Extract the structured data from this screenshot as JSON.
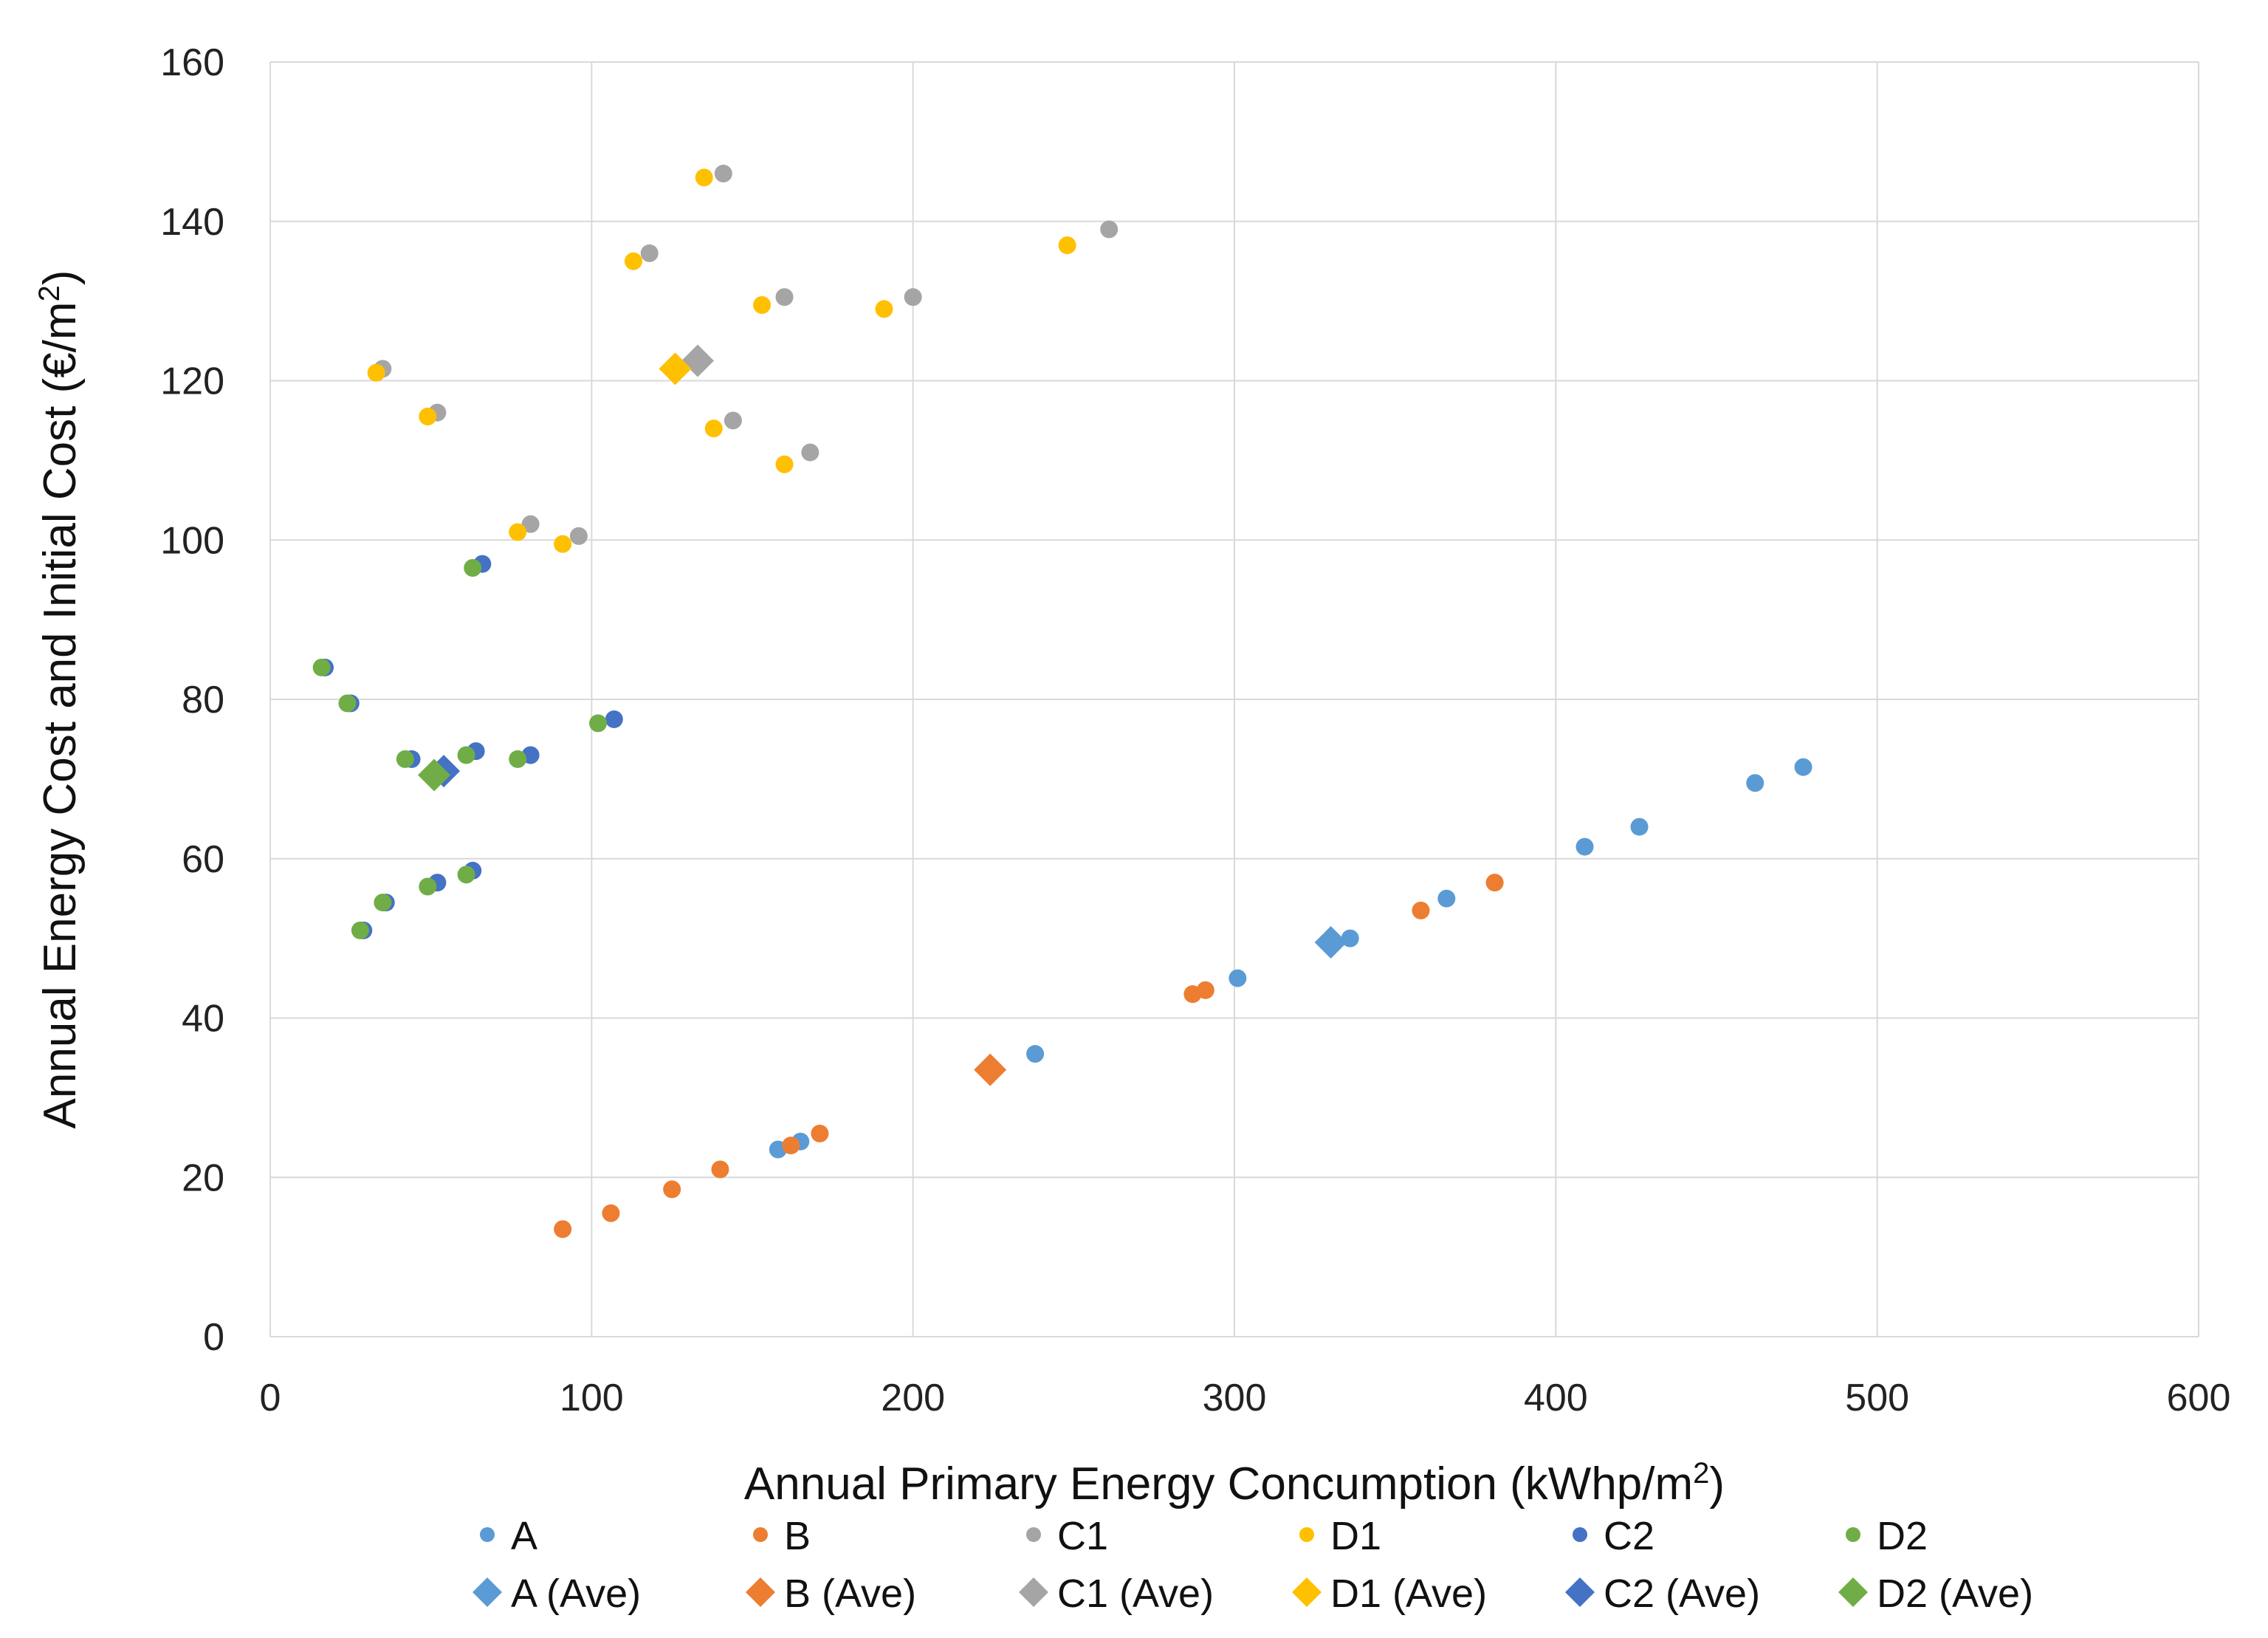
{
  "chart_data": {
    "type": "scatter",
    "title": "",
    "xlabel": "Annual Primary Energy Concumption (kWhp/m",
    "xlabel_sup": "2",
    "xlabel_end": ")",
    "ylabel": "Annual Energy Cost and Initial Cost (€/m",
    "ylabel_sup": "2",
    "ylabel_end": ")",
    "xlim": [
      0,
      600
    ],
    "ylim": [
      0,
      160
    ],
    "x_ticks": [
      0,
      100,
      200,
      300,
      400,
      500,
      600
    ],
    "y_ticks": [
      0,
      20,
      40,
      60,
      80,
      100,
      120,
      140,
      160
    ],
    "x_tick_labels": [
      "0",
      "100",
      "200",
      "300",
      "400",
      "500",
      "600"
    ],
    "y_tick_labels": [
      "0",
      "20",
      "40",
      "60",
      "80",
      "100",
      "120",
      "140",
      "160"
    ],
    "grid": true,
    "legend_position": "bottom",
    "series": [
      {
        "name": "A",
        "marker": "circle",
        "color": "#5B9BD5",
        "points": [
          [
            158,
            23.5
          ],
          [
            165,
            24.5
          ],
          [
            238,
            35.5
          ],
          [
            301,
            45
          ],
          [
            336,
            50
          ],
          [
            366,
            55
          ],
          [
            409,
            61.5
          ],
          [
            426,
            64
          ],
          [
            462,
            69.5
          ],
          [
            477,
            71.5
          ]
        ]
      },
      {
        "name": "B",
        "marker": "circle",
        "color": "#ED7D31",
        "points": [
          [
            91,
            13.5
          ],
          [
            106,
            15.5
          ],
          [
            125,
            18.5
          ],
          [
            140,
            21
          ],
          [
            162,
            24
          ],
          [
            171,
            25.5
          ],
          [
            287,
            43
          ],
          [
            291,
            43.5
          ],
          [
            358,
            53.5
          ],
          [
            381,
            57
          ]
        ]
      },
      {
        "name": "C1",
        "marker": "circle",
        "color": "#A5A5A5",
        "points": [
          [
            35,
            121.5
          ],
          [
            52,
            116
          ],
          [
            81,
            102
          ],
          [
            96,
            100.5
          ],
          [
            118,
            136
          ],
          [
            141,
            146
          ],
          [
            144,
            115
          ],
          [
            160,
            130.5
          ],
          [
            168,
            111
          ],
          [
            200,
            130.5
          ],
          [
            261,
            139
          ]
        ]
      },
      {
        "name": "D1",
        "marker": "circle",
        "color": "#FFC000",
        "points": [
          [
            33,
            121
          ],
          [
            49,
            115.5
          ],
          [
            77,
            101
          ],
          [
            91,
            99.5
          ],
          [
            113,
            135
          ],
          [
            135,
            145.5
          ],
          [
            138,
            114
          ],
          [
            153,
            129.5
          ],
          [
            160,
            109.5
          ],
          [
            191,
            129
          ],
          [
            248,
            137
          ]
        ]
      },
      {
        "name": "C2",
        "marker": "circle",
        "color": "#4472C4",
        "points": [
          [
            17,
            84
          ],
          [
            25,
            79.5
          ],
          [
            44,
            72.5
          ],
          [
            64,
            73.5
          ],
          [
            81,
            73
          ],
          [
            107,
            77.5
          ],
          [
            29,
            51
          ],
          [
            36,
            54.5
          ],
          [
            52,
            57
          ],
          [
            63,
            58.5
          ],
          [
            66,
            97
          ]
        ]
      },
      {
        "name": "D2",
        "marker": "circle",
        "color": "#70AD47",
        "points": [
          [
            16,
            84
          ],
          [
            24,
            79.5
          ],
          [
            42,
            72.5
          ],
          [
            61,
            73
          ],
          [
            77,
            72.5
          ],
          [
            102,
            77
          ],
          [
            28,
            51
          ],
          [
            35,
            54.5
          ],
          [
            49,
            56.5
          ],
          [
            61,
            58
          ],
          [
            63,
            96.5
          ]
        ]
      },
      {
        "name": "A (Ave)",
        "marker": "diamond",
        "color": "#5B9BD5",
        "points": [
          [
            330,
            49.5
          ]
        ]
      },
      {
        "name": "B (Ave)",
        "marker": "diamond",
        "color": "#ED7D31",
        "points": [
          [
            224,
            33.5
          ]
        ]
      },
      {
        "name": "C1 (Ave)",
        "marker": "diamond",
        "color": "#A5A5A5",
        "points": [
          [
            133,
            122.5
          ]
        ]
      },
      {
        "name": "D1 (Ave)",
        "marker": "diamond",
        "color": "#FFC000",
        "points": [
          [
            126,
            121.5
          ]
        ]
      },
      {
        "name": "C2 (Ave)",
        "marker": "diamond",
        "color": "#4472C4",
        "points": [
          [
            54,
            71
          ]
        ]
      },
      {
        "name": "D2 (Ave)",
        "marker": "diamond",
        "color": "#70AD47",
        "points": [
          [
            51,
            70.5
          ]
        ]
      }
    ]
  }
}
